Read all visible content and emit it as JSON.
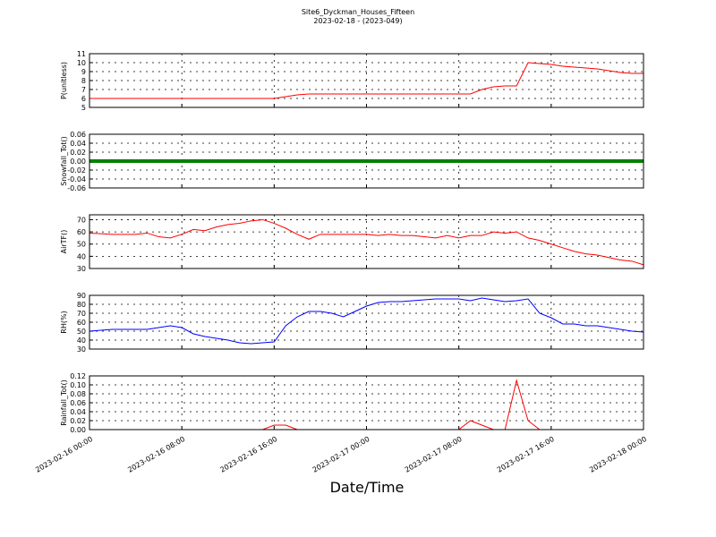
{
  "chart_data": {
    "title": "Site6_Dyckman_Houses_Fifteen",
    "subtitle": "2023-02-18 - (2023-049)",
    "xlabel": "Date/Time",
    "xlim": [
      "2023-02-16 00:00",
      "2023-02-18 00:00"
    ],
    "xticks": [
      "2023-02-16 00:00",
      "2023-02-16 08:00",
      "2023-02-16 16:00",
      "2023-02-17 00:00",
      "2023-02-17 08:00",
      "2023-02-17 16:00",
      "2023-02-18 00:00"
    ],
    "x": [
      "2023-02-16 00:00",
      "2023-02-16 01:00",
      "2023-02-16 02:00",
      "2023-02-16 03:00",
      "2023-02-16 04:00",
      "2023-02-16 05:00",
      "2023-02-16 06:00",
      "2023-02-16 07:00",
      "2023-02-16 08:00",
      "2023-02-16 09:00",
      "2023-02-16 10:00",
      "2023-02-16 11:00",
      "2023-02-16 12:00",
      "2023-02-16 13:00",
      "2023-02-16 14:00",
      "2023-02-16 15:00",
      "2023-02-16 16:00",
      "2023-02-16 17:00",
      "2023-02-16 18:00",
      "2023-02-16 19:00",
      "2023-02-16 20:00",
      "2023-02-16 21:00",
      "2023-02-16 22:00",
      "2023-02-16 23:00",
      "2023-02-17 00:00",
      "2023-02-17 01:00",
      "2023-02-17 02:00",
      "2023-02-17 03:00",
      "2023-02-17 04:00",
      "2023-02-17 05:00",
      "2023-02-17 06:00",
      "2023-02-17 07:00",
      "2023-02-17 08:00",
      "2023-02-17 09:00",
      "2023-02-17 10:00",
      "2023-02-17 11:00",
      "2023-02-17 12:00",
      "2023-02-17 13:00",
      "2023-02-17 14:00",
      "2023-02-17 15:00",
      "2023-02-17 16:00",
      "2023-02-17 17:00",
      "2023-02-17 18:00",
      "2023-02-17 19:00",
      "2023-02-17 20:00",
      "2023-02-17 21:00",
      "2023-02-17 22:00",
      "2023-02-17 23:00",
      "2023-02-18 00:00"
    ],
    "panels": [
      {
        "type": "line",
        "ylabel": "P(unitless)",
        "color": "#ff0000",
        "grid": true,
        "ylim": [
          5,
          11
        ],
        "yticks": [
          5,
          6,
          7,
          8,
          9,
          10,
          11
        ],
        "values": [
          6.0,
          6.0,
          6.0,
          6.0,
          6.0,
          6.0,
          6.0,
          6.0,
          6.0,
          6.0,
          6.0,
          6.0,
          6.0,
          6.0,
          6.0,
          6.0,
          6.0,
          6.2,
          6.4,
          6.5,
          6.5,
          6.5,
          6.5,
          6.5,
          6.5,
          6.5,
          6.5,
          6.5,
          6.5,
          6.5,
          6.5,
          6.5,
          6.5,
          6.5,
          7.0,
          7.3,
          7.4,
          7.4,
          10.0,
          9.9,
          9.8,
          9.6,
          9.5,
          9.4,
          9.3,
          9.1,
          8.9,
          8.8,
          8.8
        ]
      },
      {
        "type": "line",
        "ylabel": "Snowfall_Tot()",
        "color": "#008000",
        "grid": true,
        "ylim": [
          -0.06,
          0.06
        ],
        "yticks": [
          {
            "value": -0.06,
            "label": "-0.06"
          },
          {
            "value": -0.04,
            "label": "-0.04"
          },
          {
            "value": -0.02,
            "label": "-0.02"
          },
          {
            "value": 0,
            "label": "0.00"
          },
          {
            "value": 0.02,
            "label": "0.02"
          },
          {
            "value": 0.04,
            "label": "0.04"
          },
          {
            "value": 0.06,
            "label": "0.06"
          }
        ],
        "values": [
          0,
          0,
          0,
          0,
          0,
          0,
          0,
          0,
          0,
          0,
          0,
          0,
          0,
          0,
          0,
          0,
          0,
          0,
          0,
          0,
          0,
          0,
          0,
          0,
          0,
          0,
          0,
          0,
          0,
          0,
          0,
          0,
          0,
          0,
          0,
          0,
          0,
          0,
          0,
          0,
          0,
          0,
          0,
          0,
          0,
          0,
          0,
          0,
          0
        ]
      },
      {
        "type": "line",
        "ylabel": "AirTF()",
        "color": "#ff0000",
        "grid": true,
        "ylim": [
          30,
          74
        ],
        "yticks": [
          30,
          40,
          50,
          60,
          70
        ],
        "values": [
          59,
          58.5,
          58,
          58,
          58,
          59,
          56,
          55,
          58,
          62,
          61,
          64,
          66,
          67,
          69,
          70,
          67,
          63,
          58,
          54,
          58,
          58,
          58,
          58,
          58,
          57,
          58,
          57,
          57,
          56,
          55,
          57,
          55,
          57,
          57,
          60,
          59,
          60,
          55,
          53,
          50,
          47,
          44,
          42,
          41,
          39,
          37,
          36,
          33
        ]
      },
      {
        "type": "line",
        "ylabel": "RH(%)",
        "color": "#0000ff",
        "grid": true,
        "ylim": [
          30,
          90
        ],
        "yticks": [
          30,
          40,
          50,
          60,
          70,
          80,
          90
        ],
        "values": [
          50,
          51,
          52,
          52,
          52,
          52,
          54,
          56,
          54,
          47,
          44,
          42,
          40,
          37,
          36,
          37,
          38,
          56,
          66,
          72,
          72,
          70,
          66,
          72,
          78,
          82,
          83,
          83,
          84,
          85,
          86,
          86,
          86,
          84,
          87,
          85,
          83,
          84,
          86,
          70,
          65,
          58,
          58,
          56,
          56,
          54,
          52,
          50,
          49
        ]
      },
      {
        "type": "line",
        "ylabel": "Rainfall_Tot()",
        "color": "#ff0000",
        "grid": true,
        "ylim": [
          0,
          0.12
        ],
        "yticks": [
          {
            "value": 0,
            "label": "0.00"
          },
          {
            "value": 0.02,
            "label": "0.02"
          },
          {
            "value": 0.04,
            "label": "0.04"
          },
          {
            "value": 0.06,
            "label": "0.06"
          },
          {
            "value": 0.08,
            "label": "0.08"
          },
          {
            "value": 0.1,
            "label": "0.10"
          },
          {
            "value": 0.12,
            "label": "0.12"
          }
        ],
        "values": [
          0,
          0,
          0,
          0,
          0,
          0,
          0,
          0,
          0,
          0,
          0,
          0,
          0,
          0,
          0,
          0,
          0.01,
          0.01,
          0,
          0,
          0,
          0,
          0,
          0,
          0,
          0,
          0,
          0,
          0,
          0,
          0,
          0,
          0,
          0.02,
          0.01,
          0,
          0,
          0.11,
          0.02,
          0,
          0,
          0,
          0,
          0,
          0,
          0,
          0,
          0,
          0
        ]
      }
    ]
  }
}
